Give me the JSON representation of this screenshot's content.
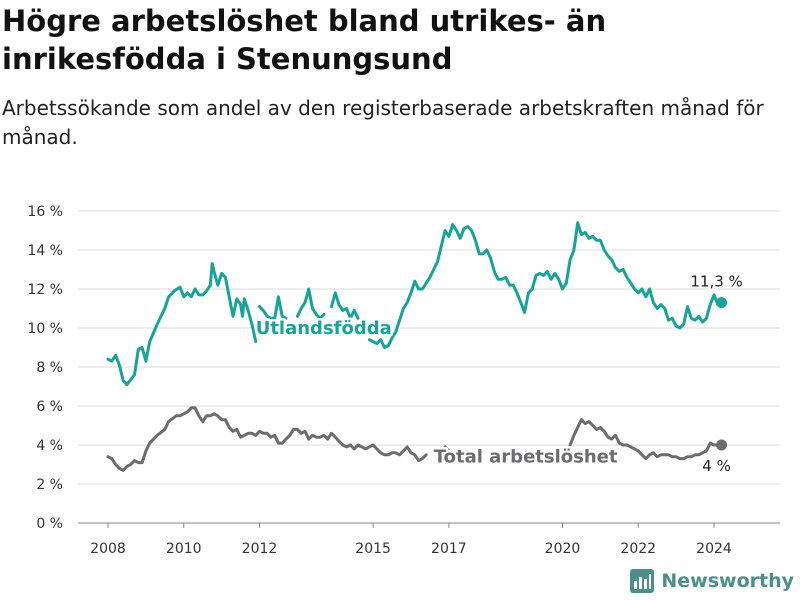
{
  "header": {
    "title": "Högre arbetslöshet bland utrikes- än inrikesfödda i Stenungsund",
    "subtitle": "Arbetssökande som andel av den registerbaserade arbetskraften månad för månad."
  },
  "brand": {
    "name": "Newsworthy",
    "icon": "bar-chart-logo-icon",
    "color": "#4a8f8c"
  },
  "chart_data": {
    "type": "line",
    "y_ticks": [
      "0 %",
      "2 %",
      "4 %",
      "6 %",
      "8 %",
      "10 %",
      "12 %",
      "14 %",
      "16 %"
    ],
    "x_ticks": [
      "2008",
      "2010",
      "2012",
      "2015",
      "2017",
      "2020",
      "2022",
      "2024"
    ],
    "x_tick_values": [
      2008,
      2010,
      2012,
      2015,
      2017,
      2020,
      2022,
      2024
    ],
    "xlim": [
      2008,
      2025
    ],
    "ylim": [
      0,
      16
    ],
    "grid": "horizontal",
    "series": [
      {
        "name": "Utlandsfödda",
        "color": "#17a398",
        "end_label": "11,3 %",
        "points": [
          [
            2008.0,
            8.4
          ],
          [
            2008.1,
            8.3
          ],
          [
            2008.2,
            8.6
          ],
          [
            2008.3,
            8.1
          ],
          [
            2008.4,
            7.3
          ],
          [
            2008.5,
            7.1
          ],
          [
            2008.7,
            7.6
          ],
          [
            2008.8,
            8.9
          ],
          [
            2008.9,
            9.0
          ],
          [
            2009.0,
            8.3
          ],
          [
            2009.1,
            9.3
          ],
          [
            2009.3,
            10.2
          ],
          [
            2009.5,
            11.0
          ],
          [
            2009.6,
            11.6
          ],
          [
            2009.75,
            11.9
          ],
          [
            2009.9,
            12.1
          ],
          [
            2010.0,
            11.6
          ],
          [
            2010.1,
            11.8
          ],
          [
            2010.2,
            11.6
          ],
          [
            2010.3,
            12.0
          ],
          [
            2010.4,
            11.7
          ],
          [
            2010.5,
            11.7
          ],
          [
            2010.6,
            11.9
          ],
          [
            2010.7,
            12.2
          ],
          [
            2010.75,
            13.3
          ],
          [
            2010.8,
            12.9
          ],
          [
            2010.9,
            12.2
          ],
          [
            2011.0,
            12.8
          ],
          [
            2011.1,
            12.6
          ],
          [
            2011.2,
            11.6
          ],
          [
            2011.3,
            10.6
          ],
          [
            2011.4,
            11.5
          ],
          [
            2011.5,
            11.2
          ],
          [
            2011.55,
            10.6
          ],
          [
            2011.6,
            11.5
          ],
          [
            2011.7,
            10.9
          ],
          [
            2011.8,
            10.2
          ],
          [
            2011.9,
            9.3
          ]
        ],
        "points_2": [
          [
            2012.0,
            11.1
          ],
          [
            2012.1,
            10.9
          ],
          [
            2012.2,
            10.6
          ],
          [
            2012.3,
            10.5
          ],
          [
            2012.4,
            10.5
          ],
          [
            2012.5,
            11.6
          ],
          [
            2012.6,
            10.6
          ],
          [
            2012.7,
            10.5
          ]
        ],
        "points_3": [
          [
            2013.0,
            10.6
          ],
          [
            2013.1,
            11.0
          ],
          [
            2013.2,
            11.3
          ],
          [
            2013.3,
            12.0
          ],
          [
            2013.4,
            11.0
          ],
          [
            2013.5,
            10.7
          ],
          [
            2013.6,
            10.5
          ],
          [
            2013.7,
            10.7
          ]
        ],
        "points_4": [
          [
            2013.9,
            11.1
          ],
          [
            2014.0,
            11.8
          ],
          [
            2014.1,
            11.2
          ],
          [
            2014.2,
            10.9
          ],
          [
            2014.3,
            11.0
          ],
          [
            2014.4,
            10.5
          ],
          [
            2014.5,
            10.9
          ],
          [
            2014.6,
            10.5
          ]
        ],
        "points_5": [
          [
            2014.9,
            9.4
          ],
          [
            2015.0,
            9.3
          ],
          [
            2015.1,
            9.2
          ],
          [
            2015.2,
            9.4
          ],
          [
            2015.3,
            9.0
          ],
          [
            2015.4,
            9.1
          ],
          [
            2015.5,
            9.5
          ],
          [
            2015.6,
            9.8
          ],
          [
            2015.7,
            10.4
          ],
          [
            2015.8,
            11.0
          ],
          [
            2015.9,
            11.3
          ],
          [
            2016.0,
            11.8
          ],
          [
            2016.1,
            12.4
          ],
          [
            2016.2,
            12.0
          ],
          [
            2016.3,
            12.0
          ],
          [
            2016.4,
            12.3
          ],
          [
            2016.5,
            12.6
          ],
          [
            2016.6,
            13.0
          ],
          [
            2016.7,
            13.4
          ],
          [
            2016.8,
            14.2
          ],
          [
            2016.9,
            15.0
          ],
          [
            2017.0,
            14.7
          ],
          [
            2017.1,
            15.3
          ],
          [
            2017.2,
            15.0
          ],
          [
            2017.3,
            14.6
          ],
          [
            2017.4,
            15.1
          ],
          [
            2017.5,
            15.2
          ],
          [
            2017.6,
            15.0
          ],
          [
            2017.7,
            14.5
          ],
          [
            2017.8,
            13.8
          ],
          [
            2017.9,
            13.8
          ],
          [
            2018.0,
            14.0
          ],
          [
            2018.1,
            13.6
          ],
          [
            2018.2,
            12.9
          ],
          [
            2018.3,
            12.5
          ],
          [
            2018.4,
            12.5
          ],
          [
            2018.5,
            12.6
          ],
          [
            2018.6,
            12.2
          ],
          [
            2018.7,
            12.2
          ],
          [
            2018.8,
            11.8
          ],
          [
            2018.9,
            11.3
          ],
          [
            2019.0,
            10.8
          ],
          [
            2019.1,
            11.8
          ],
          [
            2019.2,
            12.0
          ],
          [
            2019.3,
            12.7
          ],
          [
            2019.4,
            12.8
          ],
          [
            2019.5,
            12.7
          ],
          [
            2019.6,
            12.9
          ],
          [
            2019.7,
            12.5
          ],
          [
            2019.8,
            12.8
          ],
          [
            2019.9,
            12.5
          ],
          [
            2020.0,
            12.0
          ],
          [
            2020.1,
            12.3
          ],
          [
            2020.2,
            13.5
          ],
          [
            2020.3,
            14.0
          ],
          [
            2020.4,
            15.4
          ],
          [
            2020.5,
            14.8
          ],
          [
            2020.6,
            14.9
          ],
          [
            2020.7,
            14.6
          ],
          [
            2020.8,
            14.7
          ],
          [
            2020.9,
            14.5
          ],
          [
            2021.0,
            14.5
          ],
          [
            2021.1,
            14.0
          ],
          [
            2021.2,
            13.7
          ],
          [
            2021.3,
            13.5
          ],
          [
            2021.4,
            13.1
          ],
          [
            2021.5,
            12.9
          ],
          [
            2021.6,
            13.0
          ],
          [
            2021.7,
            12.6
          ],
          [
            2021.8,
            12.3
          ],
          [
            2021.9,
            12.0
          ],
          [
            2022.0,
            11.8
          ],
          [
            2022.1,
            12.0
          ],
          [
            2022.2,
            11.6
          ],
          [
            2022.3,
            12.0
          ],
          [
            2022.4,
            11.3
          ],
          [
            2022.5,
            11.0
          ],
          [
            2022.6,
            11.2
          ],
          [
            2022.7,
            11.0
          ],
          [
            2022.8,
            10.4
          ],
          [
            2022.9,
            10.5
          ],
          [
            2023.0,
            10.1
          ],
          [
            2023.1,
            10.0
          ],
          [
            2023.2,
            10.2
          ],
          [
            2023.3,
            11.1
          ],
          [
            2023.4,
            10.5
          ],
          [
            2023.5,
            10.4
          ],
          [
            2023.6,
            10.6
          ],
          [
            2023.7,
            10.3
          ],
          [
            2023.8,
            10.5
          ],
          [
            2023.9,
            11.2
          ],
          [
            2024.0,
            11.7
          ],
          [
            2024.1,
            11.2
          ],
          [
            2024.2,
            11.3
          ]
        ]
      },
      {
        "name": "Total arbetslöshet",
        "color": "#6c6c6e",
        "end_label": "4 %",
        "points": [
          [
            2008.0,
            3.4
          ],
          [
            2008.1,
            3.3
          ],
          [
            2008.2,
            3.0
          ],
          [
            2008.3,
            2.8
          ],
          [
            2008.4,
            2.7
          ],
          [
            2008.5,
            2.9
          ],
          [
            2008.6,
            3.0
          ],
          [
            2008.7,
            3.2
          ],
          [
            2008.8,
            3.1
          ],
          [
            2008.9,
            3.1
          ],
          [
            2009.0,
            3.7
          ],
          [
            2009.1,
            4.1
          ],
          [
            2009.3,
            4.5
          ],
          [
            2009.5,
            4.8
          ],
          [
            2009.6,
            5.2
          ],
          [
            2009.8,
            5.5
          ],
          [
            2009.9,
            5.5
          ],
          [
            2010.0,
            5.6
          ],
          [
            2010.1,
            5.7
          ],
          [
            2010.2,
            5.9
          ],
          [
            2010.3,
            5.9
          ],
          [
            2010.4,
            5.5
          ],
          [
            2010.5,
            5.2
          ],
          [
            2010.6,
            5.5
          ],
          [
            2010.7,
            5.5
          ],
          [
            2010.8,
            5.6
          ],
          [
            2010.9,
            5.5
          ],
          [
            2011.0,
            5.3
          ],
          [
            2011.1,
            5.3
          ],
          [
            2011.2,
            4.9
          ],
          [
            2011.3,
            4.7
          ],
          [
            2011.4,
            4.8
          ],
          [
            2011.5,
            4.4
          ],
          [
            2011.6,
            4.5
          ],
          [
            2011.7,
            4.6
          ],
          [
            2011.8,
            4.6
          ],
          [
            2011.9,
            4.5
          ],
          [
            2012.0,
            4.7
          ],
          [
            2012.1,
            4.6
          ],
          [
            2012.2,
            4.6
          ],
          [
            2012.3,
            4.4
          ],
          [
            2012.4,
            4.5
          ],
          [
            2012.5,
            4.1
          ],
          [
            2012.6,
            4.1
          ],
          [
            2012.7,
            4.3
          ],
          [
            2012.8,
            4.5
          ],
          [
            2012.9,
            4.8
          ],
          [
            2013.0,
            4.8
          ],
          [
            2013.1,
            4.6
          ],
          [
            2013.2,
            4.7
          ],
          [
            2013.3,
            4.3
          ],
          [
            2013.4,
            4.5
          ],
          [
            2013.5,
            4.4
          ],
          [
            2013.6,
            4.4
          ],
          [
            2013.7,
            4.5
          ],
          [
            2013.8,
            4.3
          ],
          [
            2013.9,
            4.6
          ],
          [
            2014.0,
            4.4
          ],
          [
            2014.1,
            4.2
          ],
          [
            2014.2,
            4.0
          ],
          [
            2014.3,
            3.9
          ],
          [
            2014.4,
            4.0
          ],
          [
            2014.5,
            3.8
          ],
          [
            2014.6,
            4.0
          ],
          [
            2014.7,
            3.9
          ],
          [
            2014.8,
            3.8
          ],
          [
            2014.9,
            3.9
          ],
          [
            2015.0,
            4.0
          ],
          [
            2015.1,
            3.8
          ],
          [
            2015.2,
            3.6
          ],
          [
            2015.3,
            3.5
          ],
          [
            2015.4,
            3.5
          ],
          [
            2015.5,
            3.6
          ],
          [
            2015.6,
            3.6
          ],
          [
            2015.7,
            3.5
          ],
          [
            2015.8,
            3.7
          ],
          [
            2015.9,
            3.9
          ],
          [
            2016.0,
            3.6
          ],
          [
            2016.1,
            3.5
          ],
          [
            2016.2,
            3.2
          ],
          [
            2016.3,
            3.3
          ],
          [
            2016.4,
            3.5
          ]
        ],
        "points_2": [
          [
            2016.9,
            3.9
          ],
          [
            2017.0,
            3.7
          ]
        ],
        "points_3": [
          [
            2020.2,
            4.0
          ],
          [
            2020.3,
            4.5
          ],
          [
            2020.4,
            4.9
          ],
          [
            2020.5,
            5.3
          ],
          [
            2020.6,
            5.1
          ],
          [
            2020.7,
            5.2
          ],
          [
            2020.8,
            5.0
          ],
          [
            2020.9,
            4.8
          ],
          [
            2021.0,
            4.9
          ],
          [
            2021.1,
            4.7
          ],
          [
            2021.2,
            4.4
          ],
          [
            2021.3,
            4.3
          ],
          [
            2021.4,
            4.5
          ],
          [
            2021.5,
            4.1
          ],
          [
            2021.6,
            4.0
          ],
          [
            2021.7,
            4.0
          ],
          [
            2021.8,
            3.9
          ],
          [
            2021.9,
            3.8
          ],
          [
            2022.0,
            3.7
          ],
          [
            2022.1,
            3.5
          ],
          [
            2022.2,
            3.3
          ],
          [
            2022.3,
            3.5
          ],
          [
            2022.4,
            3.6
          ],
          [
            2022.5,
            3.4
          ],
          [
            2022.6,
            3.5
          ],
          [
            2022.7,
            3.5
          ],
          [
            2022.8,
            3.5
          ],
          [
            2022.9,
            3.4
          ],
          [
            2023.0,
            3.4
          ],
          [
            2023.1,
            3.3
          ],
          [
            2023.2,
            3.3
          ],
          [
            2023.3,
            3.4
          ],
          [
            2023.4,
            3.4
          ],
          [
            2023.5,
            3.5
          ],
          [
            2023.6,
            3.5
          ],
          [
            2023.7,
            3.6
          ],
          [
            2023.8,
            3.7
          ],
          [
            2023.9,
            4.1
          ],
          [
            2024.0,
            4.0
          ],
          [
            2024.1,
            4.0
          ],
          [
            2024.2,
            4.0
          ]
        ]
      }
    ]
  }
}
